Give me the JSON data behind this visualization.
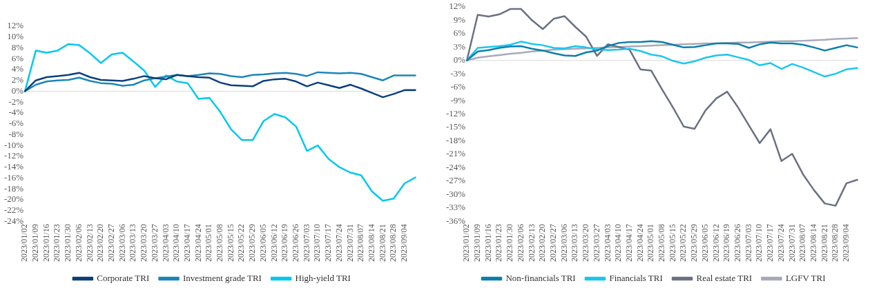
{
  "chart_data": [
    {
      "type": "line",
      "categories": [
        "2023/01/02",
        "2023/01/09",
        "2023/01/16",
        "2023/01/23",
        "2023/01/30",
        "2023/02/06",
        "2023/02/13",
        "2023/02/20",
        "2023/02/27",
        "2023/03/06",
        "2023/03/13",
        "2023/03/20",
        "2023/03/27",
        "2023/04/03",
        "2023/04/10",
        "2023/04/17",
        "2023/04/24",
        "2023/05/01",
        "2023/05/08",
        "2023/05/15",
        "2023/05/22",
        "2023/05/29",
        "2023/06/05",
        "2023/06/12",
        "2023/06/19",
        "2023/06/26",
        "2023/07/03",
        "2023/07/10",
        "2023/07/17",
        "2023/07/24",
        "2023/07/31",
        "2023/08/07",
        "2023/08/14",
        "2023/08/21",
        "2023/08/28",
        "2023/09/04",
        null
      ],
      "series": [
        {
          "name": "Corporate TRI",
          "color": "#0b3f7a",
          "values": [
            0,
            2,
            2.6,
            2.8,
            3,
            3.4,
            2.6,
            2.1,
            2,
            1.9,
            2.3,
            2.8,
            2.4,
            2.2,
            3,
            2.8,
            2.6,
            2.5,
            1.6,
            1.1,
            1,
            0.9,
            1.9,
            2.2,
            2.3,
            1.8,
            0.9,
            1.6,
            1.1,
            0.6,
            1.2,
            0.5,
            -0.3,
            -1.1,
            -0.5,
            0.2,
            0.2
          ]
        },
        {
          "name": "Investment grade TRI",
          "color": "#1a86b8",
          "values": [
            0,
            1.2,
            1.8,
            2,
            2.1,
            2.5,
            1.9,
            1.5,
            1.4,
            1,
            1.2,
            2,
            2.4,
            2.7,
            3,
            2.8,
            3,
            3.3,
            3.2,
            2.8,
            2.6,
            3,
            3.1,
            3.3,
            3.4,
            3.2,
            2.8,
            3.5,
            3.4,
            3.3,
            3.4,
            3.2,
            2.6,
            2,
            2.9,
            2.9,
            2.9
          ]
        },
        {
          "name": "High-yield TRI",
          "color": "#00c8f0",
          "values": [
            0,
            7.5,
            7.1,
            7.5,
            8.7,
            8.5,
            7,
            5.2,
            6.8,
            7.1,
            5.5,
            3.8,
            0.8,
            2.9,
            1.8,
            1.5,
            -1.4,
            -1.2,
            -3.8,
            -7,
            -9,
            -9,
            -5.5,
            -4.2,
            -4.8,
            -6.5,
            -11,
            -10,
            -12.5,
            -14,
            -15,
            -15.5,
            -18.5,
            -20.2,
            -19.8,
            -17,
            -15.9
          ]
        }
      ],
      "ylim": [
        -24,
        12
      ],
      "yticks": [
        {
          "value": -24,
          "label": "-24%"
        },
        {
          "value": -22,
          "label": "-22%"
        },
        {
          "value": -20,
          "label": "-20%"
        },
        {
          "value": -18,
          "label": "-18%"
        },
        {
          "value": -16,
          "label": "-16%"
        },
        {
          "value": -14,
          "label": "-14%"
        },
        {
          "value": -12,
          "label": "-12%"
        },
        {
          "value": -10,
          "label": "-10%"
        },
        {
          "value": -8,
          "label": "-8%"
        },
        {
          "value": -6,
          "label": "-6%"
        },
        {
          "value": -4,
          "label": "-4%"
        },
        {
          "value": -2,
          "label": "-2%"
        },
        {
          "value": 0,
          "label": "0%"
        },
        {
          "value": 2,
          "label": "2%"
        },
        {
          "value": 4,
          "label": "4%"
        },
        {
          "value": 6,
          "label": "6%"
        },
        {
          "value": 8,
          "label": "8%"
        },
        {
          "value": 10,
          "label": "10%"
        },
        {
          "value": 12,
          "label": "12%"
        }
      ],
      "ref_lines": [
        {
          "axis": "y",
          "value": 0,
          "color": "#d9d9d9"
        }
      ],
      "legend": "bottom"
    },
    {
      "type": "line",
      "categories": [
        "2023/01/02",
        "2023/01/09",
        "2023/01/16",
        "2023/01/23",
        "2023/01/30",
        "2023/02/06",
        "2023/02/13",
        "2023/02/20",
        "2023/02/27",
        "2023/03/06",
        "2023/03/13",
        "2023/03/20",
        "2023/03/27",
        "2023/04/03",
        "2023/04/10",
        "2023/04/17",
        "2023/04/24",
        "2023/05/01",
        "2023/05/08",
        "2023/05/15",
        "2023/05/22",
        "2023/05/29",
        "2023/06/05",
        "2023/06/12",
        "2023/06/19",
        "2023/06/26",
        "2023/07/03",
        "2023/07/10",
        "2023/07/17",
        "2023/07/24",
        "2023/07/31",
        "2023/08/07",
        "2023/08/14",
        "2023/08/21",
        "2023/08/28",
        "2023/09/04",
        null
      ],
      "series": [
        {
          "name": "Non-financials TRI",
          "color": "#0a7fab",
          "values": [
            0,
            2,
            2.3,
            2.8,
            3.1,
            3.2,
            2.6,
            2.2,
            1.6,
            1.1,
            1,
            1.8,
            2.2,
            3.2,
            3.9,
            4.1,
            4.1,
            4.3,
            4.1,
            3.5,
            2.9,
            3,
            3.4,
            3.8,
            3.8,
            3.7,
            2.8,
            3.6,
            4,
            3.8,
            3.8,
            3.5,
            2.9,
            2.2,
            2.8,
            3.4,
            2.9
          ]
        },
        {
          "name": "Financials TRI",
          "color": "#19c6ef",
          "values": [
            0,
            2.8,
            3,
            3.2,
            3.5,
            4.2,
            3.7,
            3.4,
            2.8,
            2.7,
            3.2,
            2.9,
            2.5,
            2.3,
            2.4,
            2.6,
            2.1,
            1.3,
            0.9,
            -0.1,
            -0.7,
            -0.2,
            0.6,
            1.1,
            1.3,
            0.7,
            0.1,
            -1.1,
            -0.6,
            -1.9,
            -0.8,
            -1.6,
            -2.6,
            -3.6,
            -3,
            -2,
            -1.7
          ]
        },
        {
          "name": "Real estate TRI",
          "color": "#6b7083",
          "values": [
            0,
            10.2,
            9.8,
            10.3,
            11.5,
            11.5,
            9,
            7,
            9.3,
            9.9,
            7.5,
            5.3,
            1,
            3.6,
            3,
            2.4,
            -2,
            -2.3,
            -6.5,
            -10.5,
            -14.8,
            -15.3,
            -11.2,
            -8.5,
            -7,
            -10.5,
            -14.5,
            -18.5,
            -15.4,
            -22.5,
            -20.9,
            -25.5,
            -29,
            -32,
            -32.5,
            -27.5,
            -26.7
          ]
        },
        {
          "name": "LGFV TRI",
          "color": "#a8a9b8",
          "values": [
            0,
            0.6,
            0.9,
            1.2,
            1.5,
            1.7,
            2,
            2.2,
            2.4,
            2.5,
            2.6,
            2.7,
            2.8,
            2.9,
            3,
            3.1,
            3.2,
            3.3,
            3.4,
            3.5,
            3.6,
            3.7,
            3.8,
            3.8,
            3.9,
            4,
            4,
            4.1,
            4.2,
            4.3,
            4.3,
            4.4,
            4.5,
            4.6,
            4.8,
            4.9,
            5
          ]
        }
      ],
      "ylim": [
        -36,
        12
      ],
      "yticks": [
        {
          "value": -36,
          "label": "-36%"
        },
        {
          "value": -33,
          "label": "-33%"
        },
        {
          "value": -30,
          "label": "-30%"
        },
        {
          "value": -27,
          "label": "-27%"
        },
        {
          "value": -24,
          "label": "-24%"
        },
        {
          "value": -21,
          "label": "-21%"
        },
        {
          "value": -18,
          "label": "-18%"
        },
        {
          "value": -15,
          "label": "-15%"
        },
        {
          "value": -12,
          "label": "-12%"
        },
        {
          "value": -9,
          "label": "-9%"
        },
        {
          "value": -6,
          "label": "-6%"
        },
        {
          "value": -3,
          "label": "-3%"
        },
        {
          "value": 0,
          "label": "0%"
        },
        {
          "value": 3,
          "label": "3%"
        },
        {
          "value": 6,
          "label": "6%"
        },
        {
          "value": 9,
          "label": "9%"
        },
        {
          "value": 12,
          "label": "12%"
        }
      ],
      "ref_lines": [
        {
          "axis": "y",
          "value": 0,
          "color": "#d9d9d9"
        }
      ],
      "legend": "bottom"
    }
  ]
}
